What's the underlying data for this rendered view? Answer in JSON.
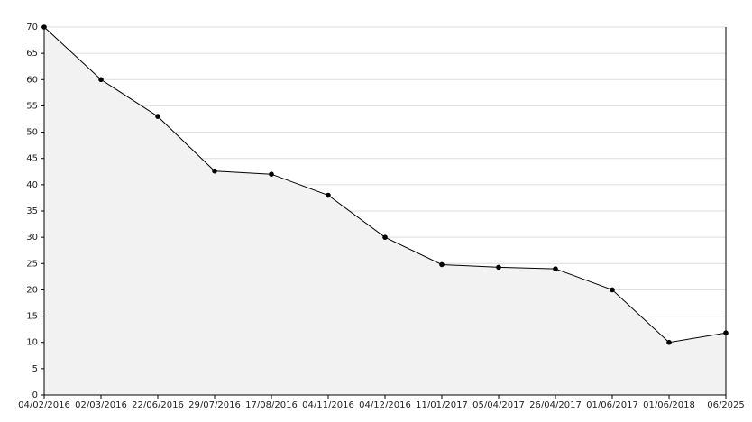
{
  "chart_data": {
    "type": "area",
    "categories": [
      "04/02/2016",
      "02/03/2016",
      "22/06/2016",
      "29/07/2016",
      "17/08/2016",
      "04/11/2016",
      "04/12/2016",
      "11/01/2017",
      "05/04/2017",
      "26/04/2017",
      "01/06/2017",
      "01/06/2018",
      "06/2025"
    ],
    "values": [
      70,
      60,
      53,
      42.6,
      42,
      38,
      30,
      24.8,
      24.3,
      24,
      20,
      10,
      11.8
    ],
    "color": "#000000",
    "fill": "#f2f2f2",
    "ylim": [
      0,
      70
    ],
    "yticks": [
      0,
      5,
      10,
      15,
      20,
      25,
      30,
      35,
      40,
      45,
      50,
      55,
      60,
      65,
      70
    ],
    "grid": true
  }
}
